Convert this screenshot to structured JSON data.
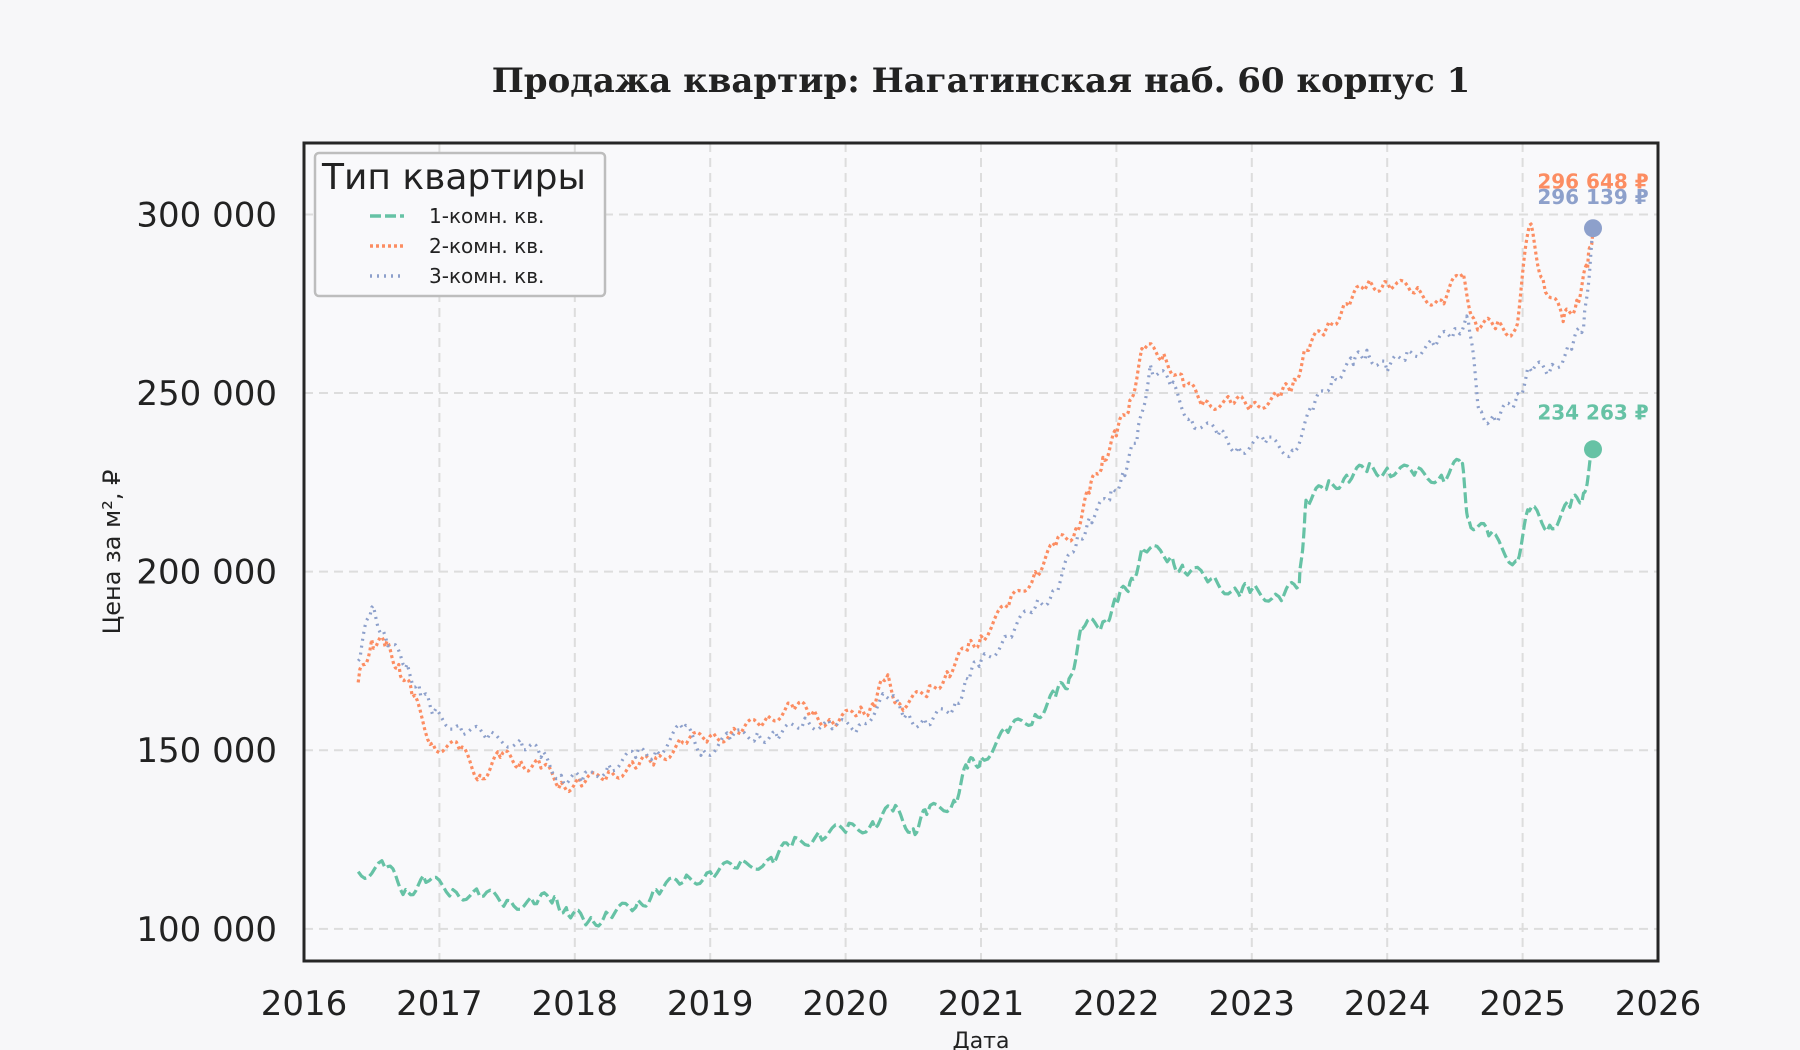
{
  "chart_data": {
    "type": "line",
    "title": "Продажа квартир: Нагатинская наб. 60 корпус 1",
    "xlabel": "Дата",
    "ylabel": "Цена за м², ₽",
    "xlim": [
      2016,
      2026
    ],
    "ylim": [
      91000,
      320000
    ],
    "x_ticks": [
      2016,
      2017,
      2018,
      2019,
      2020,
      2021,
      2022,
      2023,
      2024,
      2025,
      2026
    ],
    "y_ticks": [
      100000,
      150000,
      200000,
      250000,
      300000
    ],
    "y_tick_labels": [
      "100 000",
      "150 000",
      "200 000",
      "250 000",
      "300 000"
    ],
    "grid": true,
    "legend": {
      "title": "Тип квартиры",
      "position": "top-left"
    },
    "series": [
      {
        "name": "1-комн. кв.",
        "color": "#66c2a5",
        "dash": "dashed",
        "points": [
          [
            2016.4,
            116000
          ],
          [
            2016.6,
            117000
          ],
          [
            2016.75,
            111000
          ],
          [
            2016.9,
            113000
          ],
          [
            2017.1,
            111000
          ],
          [
            2017.3,
            109000
          ],
          [
            2017.5,
            108000
          ],
          [
            2017.7,
            107000
          ],
          [
            2017.85,
            109000
          ],
          [
            2017.95,
            104000
          ],
          [
            2018.1,
            102000
          ],
          [
            2018.25,
            104000
          ],
          [
            2018.45,
            106000
          ],
          [
            2018.6,
            111000
          ],
          [
            2018.8,
            113000
          ],
          [
            2019.0,
            116000
          ],
          [
            2019.2,
            117000
          ],
          [
            2019.45,
            120000
          ],
          [
            2019.6,
            123000
          ],
          [
            2019.8,
            127000
          ],
          [
            2020.0,
            127000
          ],
          [
            2020.2,
            130000
          ],
          [
            2020.35,
            133000
          ],
          [
            2020.5,
            128000
          ],
          [
            2020.6,
            132000
          ],
          [
            2020.8,
            136000
          ],
          [
            2020.9,
            145000
          ],
          [
            2021.0,
            148000
          ],
          [
            2021.2,
            155000
          ],
          [
            2021.4,
            160000
          ],
          [
            2021.55,
            165000
          ],
          [
            2021.65,
            170000
          ],
          [
            2021.75,
            184000
          ],
          [
            2021.9,
            186000
          ],
          [
            2022.0,
            191000
          ],
          [
            2022.1,
            197000
          ],
          [
            2022.2,
            206000
          ],
          [
            2022.4,
            204000
          ],
          [
            2022.5,
            200000
          ],
          [
            2022.7,
            198000
          ],
          [
            2022.9,
            194000
          ],
          [
            2023.0,
            195000
          ],
          [
            2023.2,
            193000
          ],
          [
            2023.35,
            196000
          ],
          [
            2023.4,
            220000
          ],
          [
            2023.55,
            223000
          ],
          [
            2023.7,
            227000
          ],
          [
            2023.85,
            228000
          ],
          [
            2024.0,
            229000
          ],
          [
            2024.2,
            227000
          ],
          [
            2024.4,
            227000
          ],
          [
            2024.55,
            230000
          ],
          [
            2024.6,
            215000
          ],
          [
            2024.75,
            210000
          ],
          [
            2024.95,
            203000
          ],
          [
            2025.05,
            217000
          ],
          [
            2025.2,
            213000
          ],
          [
            2025.35,
            218000
          ],
          [
            2025.45,
            222000
          ],
          [
            2025.52,
            234263
          ]
        ]
      },
      {
        "name": "2-комн. кв.",
        "color": "#fc8d62",
        "dash": "dotted",
        "points": [
          [
            2016.4,
            169000
          ],
          [
            2016.5,
            181000
          ],
          [
            2016.6,
            179000
          ],
          [
            2016.7,
            174000
          ],
          [
            2016.8,
            165000
          ],
          [
            2016.95,
            152000
          ],
          [
            2017.15,
            150000
          ],
          [
            2017.3,
            143000
          ],
          [
            2017.45,
            148000
          ],
          [
            2017.6,
            147000
          ],
          [
            2017.75,
            145000
          ],
          [
            2017.9,
            141000
          ],
          [
            2018.05,
            140000
          ],
          [
            2018.25,
            144000
          ],
          [
            2018.45,
            145000
          ],
          [
            2018.6,
            148000
          ],
          [
            2018.8,
            152000
          ],
          [
            2019.0,
            154000
          ],
          [
            2019.2,
            155000
          ],
          [
            2019.4,
            158000
          ],
          [
            2019.6,
            163000
          ],
          [
            2019.75,
            160000
          ],
          [
            2019.9,
            158000
          ],
          [
            2020.1,
            160000
          ],
          [
            2020.2,
            163000
          ],
          [
            2020.3,
            170000
          ],
          [
            2020.4,
            163000
          ],
          [
            2020.6,
            165000
          ],
          [
            2020.75,
            172000
          ],
          [
            2020.9,
            178000
          ],
          [
            2021.0,
            182000
          ],
          [
            2021.2,
            190000
          ],
          [
            2021.4,
            200000
          ],
          [
            2021.55,
            207000
          ],
          [
            2021.7,
            212000
          ],
          [
            2021.8,
            222000
          ],
          [
            2021.9,
            232000
          ],
          [
            2022.0,
            238000
          ],
          [
            2022.1,
            248000
          ],
          [
            2022.2,
            262000
          ],
          [
            2022.35,
            261000
          ],
          [
            2022.5,
            252000
          ],
          [
            2022.65,
            248000
          ],
          [
            2022.85,
            247000
          ],
          [
            2023.0,
            247000
          ],
          [
            2023.2,
            249000
          ],
          [
            2023.3,
            252000
          ],
          [
            2023.4,
            262000
          ],
          [
            2023.55,
            268000
          ],
          [
            2023.7,
            275000
          ],
          [
            2023.85,
            280000
          ],
          [
            2024.0,
            281000
          ],
          [
            2024.2,
            278000
          ],
          [
            2024.4,
            276000
          ],
          [
            2024.55,
            283000
          ],
          [
            2024.65,
            270000
          ],
          [
            2024.8,
            268000
          ],
          [
            2024.95,
            268000
          ],
          [
            2025.05,
            297000
          ],
          [
            2025.15,
            282000
          ],
          [
            2025.3,
            270000
          ],
          [
            2025.4,
            276000
          ],
          [
            2025.48,
            285000
          ],
          [
            2025.52,
            296648
          ]
        ]
      },
      {
        "name": "3-комн. кв.",
        "color": "#8da0cb",
        "dash": "dotted-fine",
        "points": [
          [
            2016.4,
            175000
          ],
          [
            2016.5,
            190000
          ],
          [
            2016.6,
            182000
          ],
          [
            2016.75,
            173000
          ],
          [
            2016.85,
            168000
          ],
          [
            2016.95,
            160000
          ],
          [
            2017.15,
            157000
          ],
          [
            2017.35,
            153000
          ],
          [
            2017.6,
            153000
          ],
          [
            2017.75,
            148000
          ],
          [
            2017.9,
            143000
          ],
          [
            2018.05,
            141000
          ],
          [
            2018.25,
            146000
          ],
          [
            2018.45,
            148000
          ],
          [
            2018.6,
            150000
          ],
          [
            2018.8,
            156000
          ],
          [
            2018.95,
            150000
          ],
          [
            2019.15,
            153000
          ],
          [
            2019.35,
            155000
          ],
          [
            2019.5,
            153000
          ],
          [
            2019.7,
            159000
          ],
          [
            2019.9,
            156000
          ],
          [
            2020.1,
            157000
          ],
          [
            2020.3,
            165000
          ],
          [
            2020.45,
            160000
          ],
          [
            2020.6,
            157000
          ],
          [
            2020.8,
            162000
          ],
          [
            2020.9,
            170000
          ],
          [
            2021.0,
            175000
          ],
          [
            2021.2,
            182000
          ],
          [
            2021.4,
            190000
          ],
          [
            2021.55,
            195000
          ],
          [
            2021.7,
            207000
          ],
          [
            2021.8,
            215000
          ],
          [
            2021.95,
            220000
          ],
          [
            2022.05,
            228000
          ],
          [
            2022.15,
            236000
          ],
          [
            2022.25,
            258000
          ],
          [
            2022.4,
            252000
          ],
          [
            2022.55,
            243000
          ],
          [
            2022.75,
            238000
          ],
          [
            2022.9,
            235000
          ],
          [
            2023.1,
            236000
          ],
          [
            2023.3,
            234000
          ],
          [
            2023.45,
            245000
          ],
          [
            2023.6,
            255000
          ],
          [
            2023.75,
            258000
          ],
          [
            2023.85,
            262000
          ],
          [
            2024.0,
            256000
          ],
          [
            2024.15,
            262000
          ],
          [
            2024.35,
            263000
          ],
          [
            2024.5,
            268000
          ],
          [
            2024.6,
            270000
          ],
          [
            2024.68,
            245000
          ],
          [
            2024.8,
            242000
          ],
          [
            2024.95,
            248000
          ],
          [
            2025.05,
            257000
          ],
          [
            2025.2,
            256000
          ],
          [
            2025.35,
            263000
          ],
          [
            2025.45,
            268000
          ],
          [
            2025.52,
            296139
          ]
        ]
      }
    ],
    "annotations": [
      {
        "text": "296 648 ₽",
        "color": "#fc8d62",
        "x": 2025.52,
        "y": 296648
      },
      {
        "text": "296 139 ₽",
        "color": "#8da0cb",
        "x": 2025.52,
        "y": 296139
      },
      {
        "text": "234 263 ₽",
        "color": "#66c2a5",
        "x": 2025.52,
        "y": 234263
      }
    ]
  }
}
